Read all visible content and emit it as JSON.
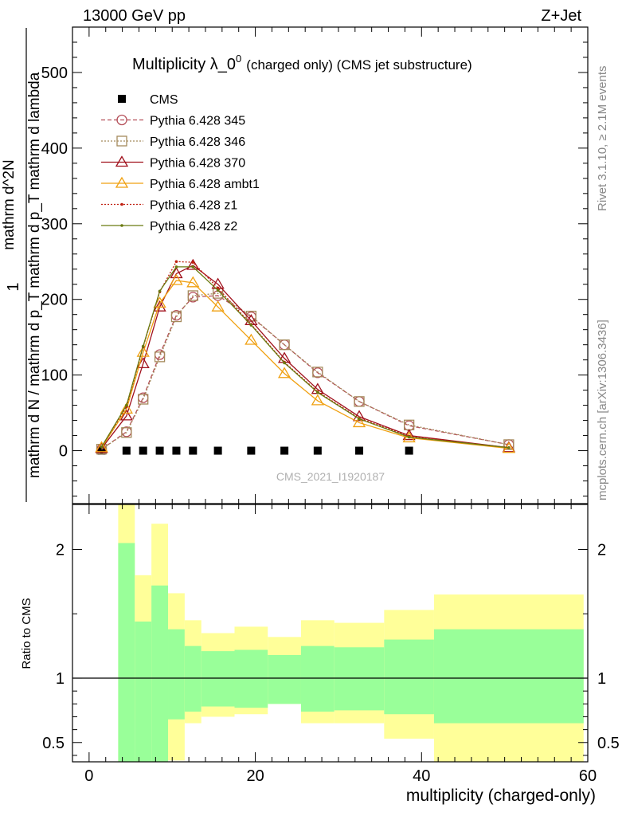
{
  "header": {
    "left": "13000 GeV pp",
    "right": "Z+Jet"
  },
  "side_labels": {
    "rivet": "Rivet 3.1.10, ≥ 2.1M events",
    "mcplots": "mcplots.cern.ch [arXiv:1306.3436]"
  },
  "watermark": "CMS_2021_I1920187",
  "chart_data": [
    {
      "type": "line",
      "title": "Multiplicity λ_0^0",
      "title_main": "Multiplicity λ_0",
      "title_sup": "0",
      "title_suffix": "(charged only) (CMS jet substructure)",
      "ylabel_numerator": "1",
      "ylabel_denominator": "mathrm d N / mathrm d p_T mathrm d p_T mathrm d lambda",
      "ylabel_main": "mathrm d^2N",
      "xlim": [
        -2,
        60
      ],
      "ylim": [
        -70,
        560
      ],
      "yticks": [
        "0",
        "100",
        "200",
        "300",
        "400",
        "500"
      ],
      "x": [
        1.5,
        4.5,
        6.5,
        8.5,
        10.5,
        12.5,
        15.5,
        19.5,
        23.5,
        27.5,
        32.5,
        38.5,
        50.5
      ],
      "series": [
        {
          "name": "CMS",
          "color": "#000000",
          "marker": "square-filled",
          "dash": "none",
          "values": [
            0,
            0,
            0,
            0,
            0,
            0,
            0,
            0,
            0,
            0,
            0,
            0,
            null
          ]
        },
        {
          "name": "Pythia 6.428 345",
          "color": "#b5505a",
          "marker": "circle",
          "dash": "dashed",
          "values": [
            2,
            25,
            70,
            127,
            179,
            203,
            205,
            177,
            140,
            103,
            65,
            33,
            8
          ]
        },
        {
          "name": "Pythia 6.428 346",
          "color": "#a58a5c",
          "marker": "square",
          "dash": "dotted",
          "values": [
            2,
            24,
            68,
            124,
            177,
            205,
            208,
            178,
            140,
            104,
            65,
            34,
            8
          ]
        },
        {
          "name": "Pythia 6.428 370",
          "color": "#a0101c",
          "marker": "triangle",
          "dash": "none",
          "values": [
            3,
            46,
            115,
            190,
            234,
            245,
            220,
            172,
            122,
            81,
            45,
            20,
            4
          ]
        },
        {
          "name": "Pythia 6.428 ambt1",
          "color": "#f0a010",
          "marker": "triangle",
          "dash": "none",
          "values": [
            4,
            55,
            130,
            195,
            225,
            222,
            190,
            146,
            102,
            66,
            37,
            17,
            3
          ]
        },
        {
          "name": "Pythia 6.428 z1",
          "color": "#c02010",
          "marker": "dot",
          "dash": "dotted",
          "values": [
            5,
            58,
            137,
            210,
            250,
            249,
            215,
            167,
            117,
            78,
            43,
            19,
            4
          ]
        },
        {
          "name": "Pythia 6.428 z2",
          "color": "#6a7a10",
          "marker": "dot",
          "dash": "none",
          "values": [
            5,
            60,
            138,
            211,
            243,
            243,
            212,
            166,
            116,
            77,
            42,
            18,
            4
          ]
        }
      ]
    },
    {
      "type": "area",
      "xlabel": "multiplicity (charged-only)",
      "ylabel": "Ratio to CMS",
      "xlim": [
        -2,
        60
      ],
      "ylim": [
        0.35,
        2.35
      ],
      "xticks": [
        "0",
        "20",
        "40",
        "60"
      ],
      "yticks": [
        "0.5",
        "1",
        "2"
      ],
      "bins": [
        [
          3.5,
          5.5
        ],
        [
          5.5,
          7.5
        ],
        [
          7.5,
          9.5
        ],
        [
          9.5,
          11.5
        ],
        [
          11.5,
          13.5
        ],
        [
          13.5,
          17.5
        ],
        [
          17.5,
          21.5
        ],
        [
          21.5,
          25.5
        ],
        [
          25.5,
          29.5
        ],
        [
          29.5,
          35.5
        ],
        [
          35.5,
          41.5
        ],
        [
          41.5,
          59.5
        ]
      ],
      "band_inner": {
        "color": "#99ff99",
        "lower": [
          0.2,
          0.2,
          0.2,
          0.68,
          0.74,
          0.78,
          0.77,
          0.8,
          0.74,
          0.75,
          0.72,
          0.65
        ],
        "upper": [
          2.05,
          1.44,
          1.72,
          1.38,
          1.25,
          1.21,
          1.22,
          1.18,
          1.25,
          1.24,
          1.3,
          1.38
        ]
      },
      "band_outer": {
        "color": "#ffff99",
        "lower": [
          0.2,
          0.68,
          0.2,
          0.36,
          0.65,
          0.7,
          0.72,
          0.8,
          0.65,
          0.65,
          0.53,
          0.2
        ],
        "upper": [
          2.4,
          1.8,
          2.2,
          1.66,
          1.45,
          1.35,
          1.4,
          1.32,
          1.45,
          1.43,
          1.53,
          1.65
        ]
      },
      "reference_line": 1
    }
  ]
}
